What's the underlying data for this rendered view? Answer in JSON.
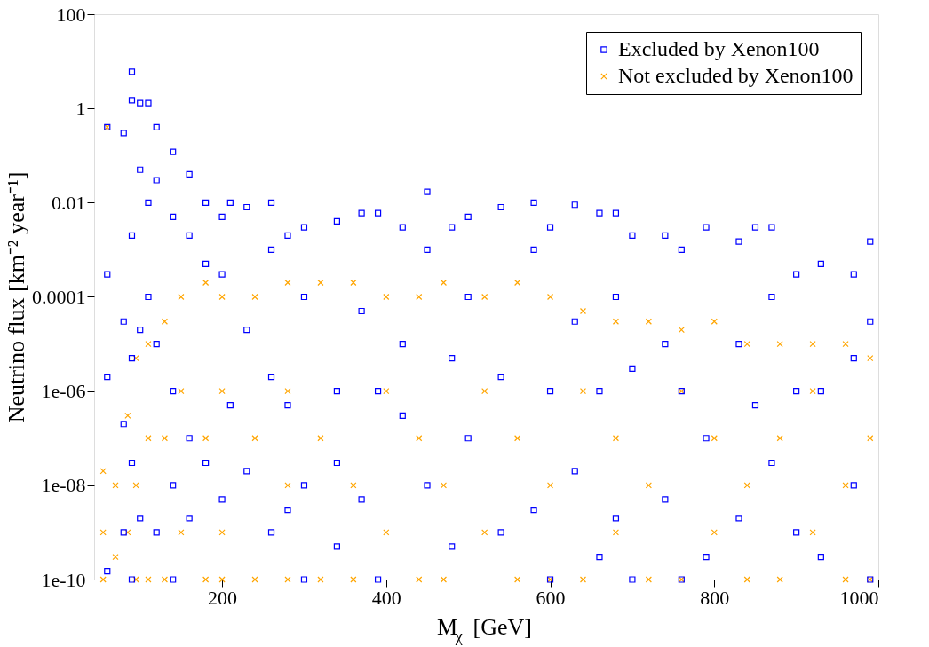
{
  "chart_data": {
    "type": "scatter",
    "xlabel": "M$_{χ}$ [GeV]",
    "ylabel": "Neutrino flux [km⁻² year⁻¹]",
    "xlim": [
      44,
      1000
    ],
    "xticks": [
      200,
      400,
      600,
      800,
      1000
    ],
    "ylim": [
      1e-10,
      100
    ],
    "yticks": [
      {
        "value": 1e-10,
        "label": "1e-10"
      },
      {
        "value": 1e-08,
        "label": "1e-08"
      },
      {
        "value": 1e-06,
        "label": "1e-06"
      },
      {
        "value": 0.0001,
        "label": "0.0001"
      },
      {
        "value": 0.01,
        "label": "0.01"
      },
      {
        "value": 1,
        "label": "1"
      },
      {
        "value": 100,
        "label": "100"
      }
    ],
    "log": "y",
    "grid": false,
    "legend": "top right",
    "series": [
      {
        "name": "Excluded by Xenon100",
        "color": "#0000ff",
        "marker": "square",
        "x": [
          60,
          60,
          60,
          60,
          80,
          80,
          80,
          80,
          90,
          90,
          90,
          90,
          90,
          90,
          100,
          100,
          100,
          100,
          110,
          110,
          110,
          120,
          120,
          120,
          120,
          140,
          140,
          140,
          140,
          140,
          160,
          160,
          160,
          160,
          180,
          180,
          180,
          200,
          200,
          200,
          210,
          210,
          230,
          230,
          230,
          260,
          260,
          260,
          260,
          280,
          280,
          280,
          300,
          300,
          300,
          300,
          340,
          340,
          340,
          340,
          370,
          370,
          370,
          390,
          390,
          390,
          420,
          420,
          420,
          450,
          450,
          450,
          480,
          480,
          480,
          500,
          500,
          500,
          540,
          540,
          540,
          580,
          580,
          580,
          600,
          600,
          600,
          630,
          630,
          630,
          660,
          660,
          660,
          680,
          680,
          680,
          700,
          700,
          700,
          740,
          740,
          740,
          760,
          760,
          760,
          790,
          790,
          790,
          830,
          830,
          830,
          850,
          850,
          870,
          870,
          870,
          900,
          900,
          900,
          930,
          930,
          930,
          970,
          970,
          970,
          990,
          990,
          990
        ],
        "values": [
          0.4,
          0.0003,
          2e-06,
          1.5e-10,
          0.3,
          3e-05,
          2e-07,
          1e-09,
          6,
          1.5,
          0.002,
          5e-06,
          3e-08,
          1e-10,
          1.3,
          0.05,
          2e-05,
          2e-09,
          1.3,
          0.01,
          0.0001,
          0.4,
          0.03,
          1e-05,
          1e-09,
          0.12,
          0.005,
          1e-06,
          1e-08,
          1e-10,
          0.04,
          0.002,
          1e-07,
          2e-09,
          0.01,
          0.0005,
          3e-08,
          0.005,
          0.0003,
          5e-09,
          0.01,
          5e-07,
          0.008,
          2e-05,
          2e-08,
          0.01,
          0.001,
          2e-06,
          1e-09,
          0.002,
          5e-07,
          3e-09,
          0.003,
          0.0001,
          1e-08,
          1e-10,
          0.004,
          1e-06,
          3e-08,
          5e-10,
          0.006,
          5e-05,
          5e-09,
          0.006,
          1e-06,
          1e-10,
          0.003,
          1e-05,
          3e-07,
          0.017,
          0.001,
          1e-08,
          0.003,
          5e-06,
          5e-10,
          0.005,
          0.0001,
          1e-07,
          0.008,
          2e-06,
          1e-09,
          0.01,
          0.001,
          3e-09,
          0.003,
          1e-06,
          1e-10,
          0.009,
          3e-05,
          2e-08,
          0.006,
          1e-06,
          3e-10,
          0.006,
          0.0001,
          2e-09,
          0.002,
          3e-06,
          1e-10,
          0.002,
          1e-05,
          5e-09,
          0.001,
          1e-06,
          1e-10,
          0.003,
          1e-07,
          3e-10,
          0.0015,
          1e-05,
          2e-09,
          0.003,
          5e-07,
          0.003,
          0.0001,
          3e-08,
          0.0003,
          1e-06,
          1e-09,
          0.0005,
          1e-06,
          3e-10,
          0.0003,
          5e-06,
          1e-08,
          0.0015,
          3e-05,
          1e-10
        ]
      },
      {
        "name": "Not excluded by Xenon100",
        "color": "#ffa500",
        "marker": "cross",
        "x": [
          55,
          55,
          55,
          60,
          70,
          70,
          85,
          85,
          95,
          95,
          95,
          110,
          110,
          110,
          130,
          130,
          130,
          150,
          150,
          150,
          180,
          180,
          180,
          200,
          200,
          200,
          200,
          240,
          240,
          240,
          280,
          280,
          280,
          280,
          320,
          320,
          320,
          360,
          360,
          360,
          400,
          400,
          400,
          440,
          440,
          440,
          470,
          470,
          470,
          520,
          520,
          520,
          560,
          560,
          560,
          600,
          600,
          600,
          640,
          640,
          640,
          680,
          680,
          680,
          720,
          720,
          720,
          760,
          760,
          760,
          800,
          800,
          800,
          840,
          840,
          840,
          880,
          880,
          880,
          920,
          920,
          920,
          960,
          960,
          960,
          990,
          990,
          990
        ],
        "values": [
          2e-08,
          1e-09,
          1e-10,
          0.4,
          1e-08,
          3e-10,
          3e-07,
          1e-09,
          5e-06,
          1e-08,
          1e-10,
          1e-05,
          1e-07,
          1e-10,
          3e-05,
          1e-07,
          1e-10,
          0.0001,
          1e-06,
          1e-09,
          0.0002,
          1e-07,
          1e-10,
          0.0001,
          1e-06,
          1e-09,
          1e-10,
          0.0001,
          1e-07,
          1e-10,
          0.0002,
          1e-06,
          1e-08,
          1e-10,
          0.0002,
          1e-07,
          1e-10,
          0.0002,
          1e-08,
          1e-10,
          0.0001,
          1e-06,
          1e-09,
          0.0001,
          1e-07,
          1e-10,
          0.0002,
          1e-08,
          1e-10,
          0.0001,
          1e-06,
          1e-09,
          0.0002,
          1e-07,
          1e-10,
          0.0001,
          1e-08,
          1e-10,
          5e-05,
          1e-06,
          1e-10,
          3e-05,
          1e-07,
          1e-09,
          3e-05,
          1e-08,
          1e-10,
          2e-05,
          1e-06,
          1e-10,
          3e-05,
          1e-07,
          1e-09,
          1e-05,
          1e-08,
          1e-10,
          1e-05,
          1e-07,
          1e-10,
          1e-05,
          1e-06,
          1e-09,
          1e-05,
          1e-08,
          1e-10,
          5e-06,
          1e-07,
          1e-10
        ]
      }
    ]
  }
}
